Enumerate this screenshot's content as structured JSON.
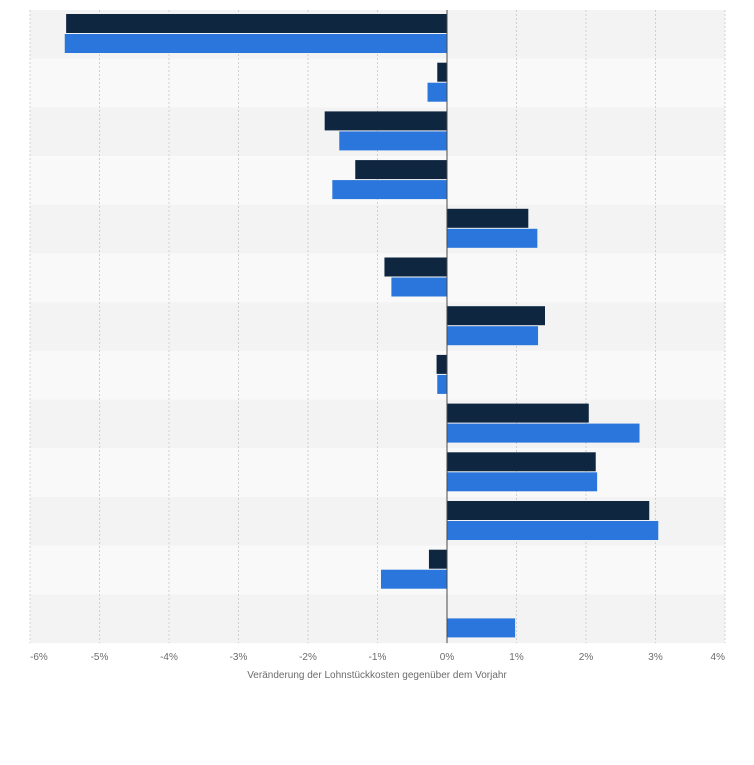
{
  "chart_data": {
    "type": "bar",
    "orientation": "horizontal",
    "title": "",
    "xlabel": "Veränderung der Lohnstückkosten gegenüber dem Vorjahr",
    "ylabel": "",
    "xlim": [
      -6,
      4
    ],
    "grid": true,
    "legend": "none",
    "xticks": [
      "-6%",
      "-5%",
      "-4%",
      "-3%",
      "-2%",
      "-1%",
      "0%",
      "1%",
      "2%",
      "3%",
      "4%"
    ],
    "categories": [
      "",
      "",
      "",
      "",
      "",
      "",
      "",
      "",
      "",
      "",
      "",
      "",
      ""
    ],
    "series": [
      {
        "color": "#0f2640",
        "values": [
          -5.48,
          -0.14,
          -1.76,
          -1.32,
          1.17,
          -0.9,
          1.41,
          -0.15,
          2.04,
          2.14,
          2.91,
          -0.26,
          null
        ]
      },
      {
        "color": "#2a76dd",
        "values": [
          -5.5,
          -0.28,
          -1.55,
          -1.65,
          1.3,
          -0.8,
          1.31,
          -0.14,
          2.77,
          2.16,
          3.04,
          -0.95,
          0.98
        ]
      }
    ]
  },
  "colors": {
    "band_dark": "#f3f3f3",
    "band_light": "#f9f9f9",
    "grid": "#d0d0d0",
    "zero_line": "#4a4a4a"
  }
}
